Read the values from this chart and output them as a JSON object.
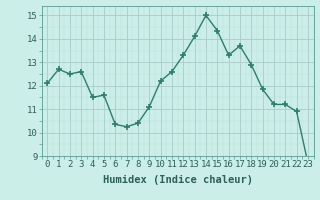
{
  "x": [
    0,
    1,
    2,
    3,
    4,
    5,
    6,
    7,
    8,
    9,
    10,
    11,
    12,
    13,
    14,
    15,
    16,
    17,
    18,
    19,
    20,
    21,
    22,
    23
  ],
  "y": [
    12.1,
    12.7,
    12.5,
    12.6,
    11.5,
    11.6,
    10.35,
    10.25,
    10.4,
    11.1,
    12.2,
    12.6,
    13.3,
    14.1,
    15.0,
    14.35,
    13.3,
    13.7,
    12.9,
    11.85,
    11.2,
    11.2,
    10.9,
    8.7
  ],
  "line_color": "#2e7d6e",
  "marker": "+",
  "marker_size": 4,
  "marker_lw": 1.2,
  "background_color": "#cceee8",
  "grid_color_major": "#aaccc8",
  "grid_color_minor": "#bbddda",
  "xlabel": "Humidex (Indice chaleur)",
  "xlim": [
    -0.5,
    23.5
  ],
  "ylim": [
    9,
    15.4
  ],
  "yticks": [
    9,
    10,
    11,
    12,
    13,
    14,
    15
  ],
  "xticks": [
    0,
    1,
    2,
    3,
    4,
    5,
    6,
    7,
    8,
    9,
    10,
    11,
    12,
    13,
    14,
    15,
    16,
    17,
    18,
    19,
    20,
    21,
    22,
    23
  ],
  "tick_fontsize": 6.5,
  "xlabel_fontsize": 7.5
}
